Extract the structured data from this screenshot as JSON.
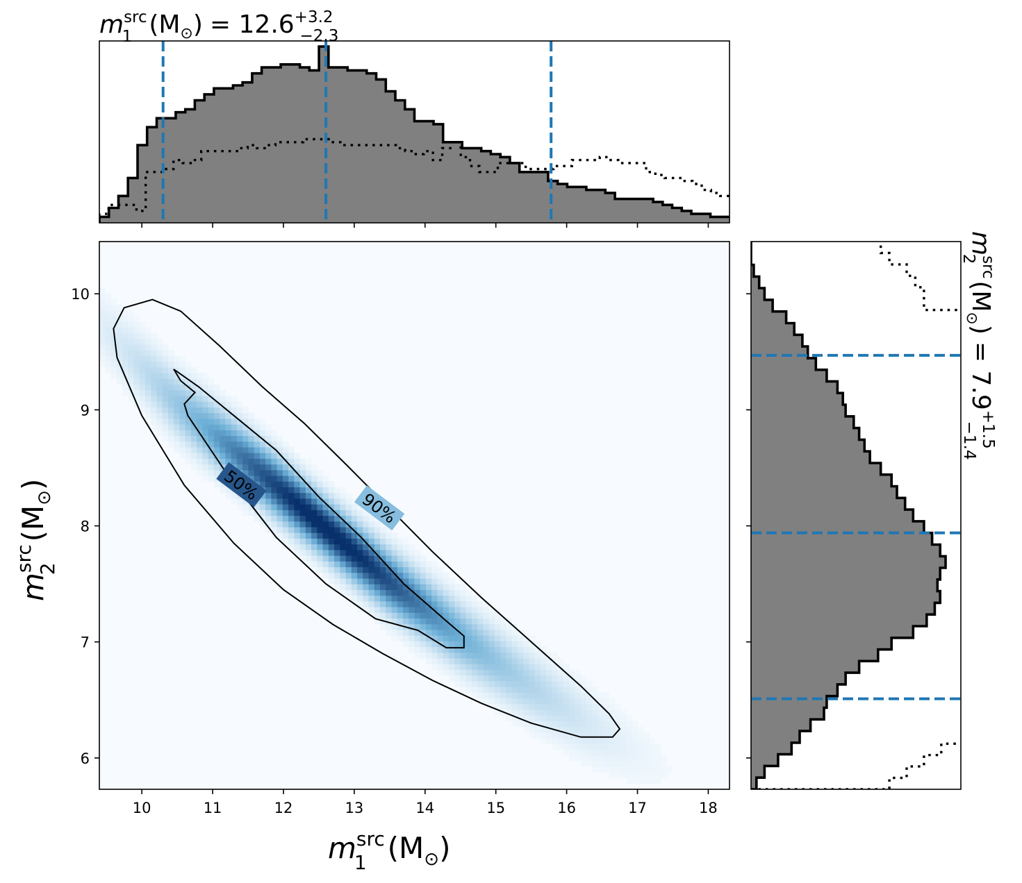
{
  "figure": {
    "top_title": {
      "var": "m",
      "sup": "src",
      "sub": "1",
      "unit": "(M",
      "sun": "⊙",
      "close": ")",
      "eq": "= 12.6",
      "err_plus": "+3.2",
      "err_minus": "−2.3"
    },
    "right_title": {
      "var": "m",
      "sup": "src",
      "sub": "2",
      "unit": "(M",
      "sun": "⊙",
      "close": ")",
      "eq": "= 7.9",
      "err_plus": "+1.5",
      "err_minus": "−1.4"
    },
    "xlabel": {
      "var": "m",
      "sup": "src",
      "sub": "1",
      "unit": "(M",
      "sun": "⊙",
      "close": ")"
    },
    "ylabel": {
      "var": "m",
      "sup": "src",
      "sub": "2",
      "unit": "(M",
      "sun": "⊙",
      "close": ")"
    }
  },
  "colors": {
    "hist_fill": "#808080",
    "hist_edge": "#000000",
    "quantile_line": "#1f77b4",
    "density_low": "#f7fbff",
    "density_high": "#08306b"
  },
  "chart_data": [
    {
      "type": "heatmap",
      "xlim": [
        9.4,
        18.3
      ],
      "ylim": [
        5.73,
        10.45
      ],
      "xticks": [
        10,
        11,
        12,
        13,
        14,
        15,
        16,
        17,
        18
      ],
      "yticks": [
        6,
        7,
        8,
        9,
        10
      ],
      "colormap": "Blues",
      "ridge": [
        [
          9.7,
          9.55
        ],
        [
          10.5,
          9.05
        ],
        [
          11.5,
          8.55
        ],
        [
          12.6,
          7.98
        ],
        [
          13.5,
          7.52
        ],
        [
          14.5,
          7.05
        ],
        [
          15.5,
          6.62
        ],
        [
          16.5,
          6.22
        ],
        [
          17.3,
          5.95
        ]
      ],
      "contours": [
        {
          "label": "90%",
          "points": [
            [
              10.15,
              9.95
            ],
            [
              10.55,
              9.85
            ],
            [
              11.1,
              9.55
            ],
            [
              11.7,
              9.2
            ],
            [
              12.3,
              8.88
            ],
            [
              12.9,
              8.52
            ],
            [
              13.5,
              8.15
            ],
            [
              14.1,
              7.78
            ],
            [
              14.8,
              7.38
            ],
            [
              15.5,
              7.0
            ],
            [
              16.2,
              6.62
            ],
            [
              16.6,
              6.38
            ],
            [
              16.75,
              6.25
            ],
            [
              16.65,
              6.18
            ],
            [
              16.2,
              6.18
            ],
            [
              15.5,
              6.3
            ],
            [
              14.8,
              6.47
            ],
            [
              14.1,
              6.67
            ],
            [
              13.4,
              6.9
            ],
            [
              12.7,
              7.15
            ],
            [
              12.0,
              7.45
            ],
            [
              11.3,
              7.85
            ],
            [
              10.6,
              8.35
            ],
            [
              10.0,
              8.95
            ],
            [
              9.65,
              9.45
            ],
            [
              9.6,
              9.7
            ],
            [
              9.75,
              9.88
            ]
          ],
          "label_at": [
            13.35,
            8.15
          ],
          "label_angle": 37
        },
        {
          "label": "50%",
          "points": [
            [
              10.45,
              9.35
            ],
            [
              10.8,
              9.2
            ],
            [
              11.3,
              8.95
            ],
            [
              11.9,
              8.65
            ],
            [
              12.5,
              8.25
            ],
            [
              13.1,
              7.9
            ],
            [
              13.7,
              7.5
            ],
            [
              14.3,
              7.18
            ],
            [
              14.55,
              7.05
            ],
            [
              14.55,
              6.95
            ],
            [
              14.3,
              6.95
            ],
            [
              13.9,
              7.1
            ],
            [
              13.3,
              7.2
            ],
            [
              12.6,
              7.5
            ],
            [
              11.9,
              7.9
            ],
            [
              11.2,
              8.45
            ],
            [
              10.65,
              8.95
            ],
            [
              10.6,
              9.05
            ],
            [
              10.75,
              9.15
            ],
            [
              10.55,
              9.25
            ]
          ],
          "label_at": [
            11.4,
            8.35
          ],
          "label_angle": 37
        }
      ]
    },
    {
      "type": "bar",
      "orientation": "vertical",
      "x_edges_range": [
        9.4,
        18.3
      ],
      "posterior": [
        2,
        5,
        9,
        15,
        26,
        32,
        35,
        35,
        37,
        38,
        41,
        43,
        45,
        45,
        46,
        47,
        50,
        52,
        52,
        53,
        53,
        52,
        51,
        59,
        52,
        52,
        51,
        51,
        50,
        48,
        44,
        41,
        38,
        34,
        34,
        33,
        27,
        27,
        25,
        25,
        24,
        23,
        22,
        20,
        17,
        17,
        17,
        14,
        13,
        12,
        12,
        11,
        11,
        10,
        8,
        8,
        8,
        8,
        7,
        6,
        5,
        4,
        3,
        3,
        2,
        2
      ],
      "prior": [
        3,
        6,
        6,
        6,
        4,
        17,
        17,
        18,
        21,
        20,
        21,
        24,
        24,
        24,
        24,
        25,
        26,
        25,
        26,
        27,
        27,
        27,
        28,
        28,
        28,
        27,
        26,
        26,
        26,
        26,
        26,
        26,
        25,
        24,
        23,
        24,
        21,
        25,
        27,
        22,
        19,
        17,
        17,
        20,
        20,
        20,
        18,
        18,
        18,
        19,
        19,
        21,
        21,
        21,
        22,
        21,
        20,
        20,
        20,
        17,
        16,
        15,
        15,
        14,
        13,
        11,
        10,
        9
      ],
      "quantiles": [
        10.3,
        12.6,
        15.78
      ]
    },
    {
      "type": "bar",
      "orientation": "horizontal",
      "y_edges_range": [
        5.73,
        10.45
      ],
      "posterior": [
        2,
        5,
        10,
        15,
        18,
        22,
        27,
        28,
        32,
        35,
        40,
        47,
        52,
        60,
        65,
        68,
        70,
        69,
        70,
        72,
        70,
        67,
        64,
        60,
        57,
        54,
        52,
        48,
        44,
        42,
        40,
        38,
        35,
        34,
        32,
        28,
        24,
        21,
        19,
        16,
        13,
        8,
        5,
        3,
        1,
        0,
        0
      ],
      "prior": [
        16,
        18,
        20,
        22,
        25,
        27,
        29,
        30,
        32,
        34,
        38,
        41,
        44,
        46,
        47,
        50,
        50,
        52,
        55,
        55,
        50,
        48,
        46,
        47,
        45,
        45,
        43,
        41,
        39,
        40,
        38,
        37,
        36,
        34,
        35,
        35,
        34,
        32,
        31,
        30,
        29,
        26,
        20,
        20,
        19,
        18,
        16,
        15
      ],
      "quantiles": [
        6.51,
        7.94,
        9.47
      ]
    }
  ]
}
